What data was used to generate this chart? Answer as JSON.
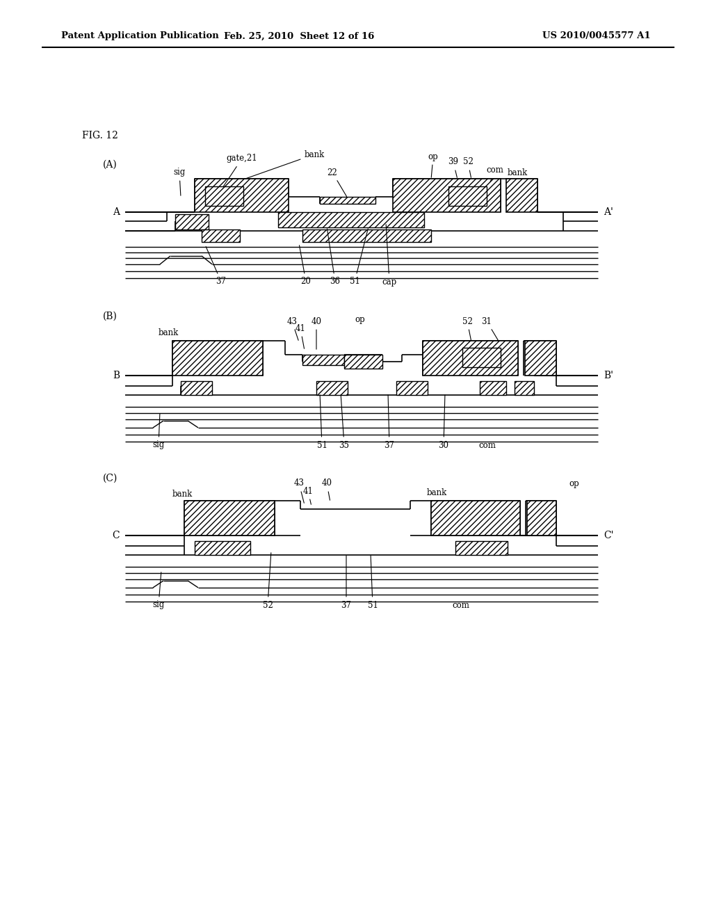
{
  "bg_color": "#ffffff",
  "title_left": "Patent Application Publication",
  "title_mid": "Feb. 25, 2010  Sheet 12 of 16",
  "title_right": "US 2010/0045577 A1",
  "fig_label": "FIG. 12"
}
